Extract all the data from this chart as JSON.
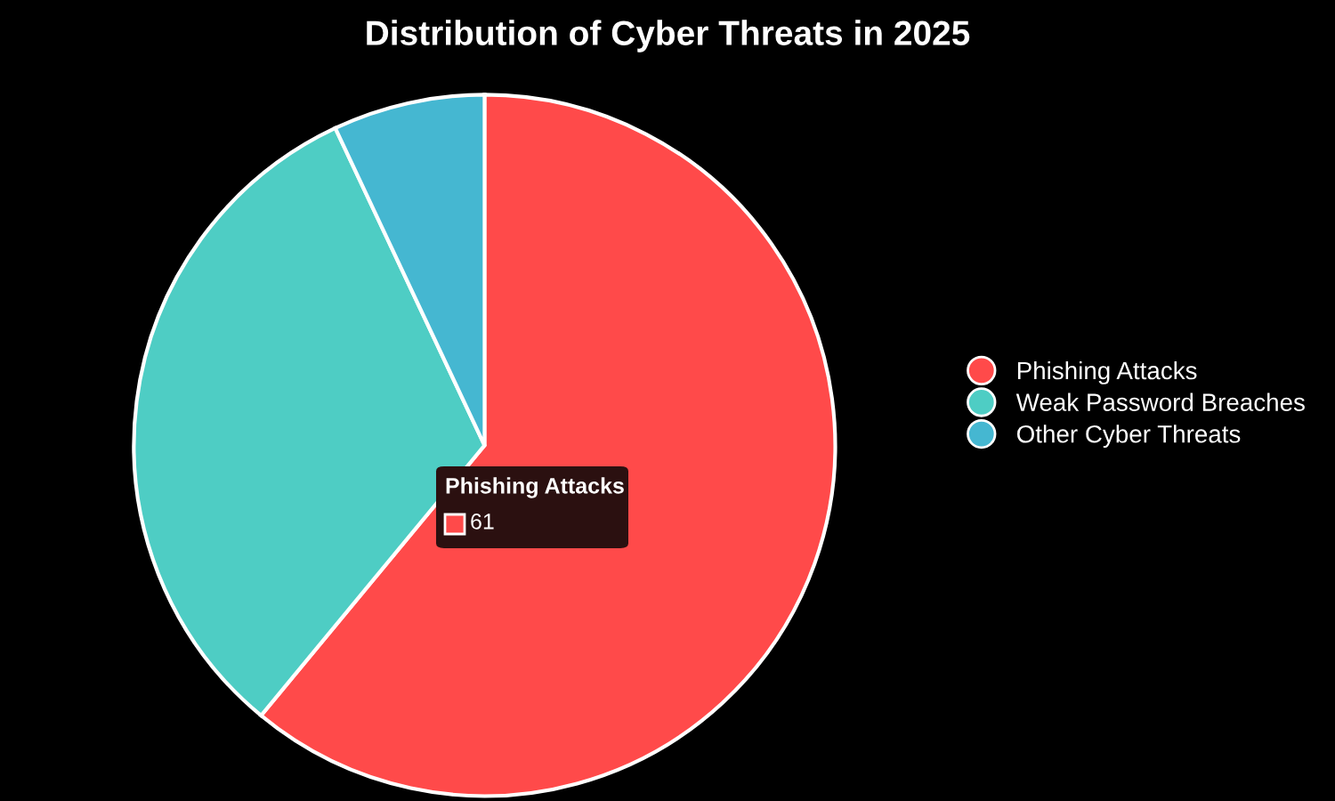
{
  "chart_data": {
    "type": "pie",
    "title": "Distribution of Cyber Threats in 2025",
    "categories": [
      "Phishing Attacks",
      "Weak Password Breaches",
      "Other Cyber Threats"
    ],
    "values": [
      61,
      32,
      7
    ],
    "colors": [
      "#ff4a4a",
      "#4ecdc4",
      "#45b7d1"
    ],
    "value_labels": [
      "61",
      null,
      null
    ],
    "legend": "right"
  }
}
